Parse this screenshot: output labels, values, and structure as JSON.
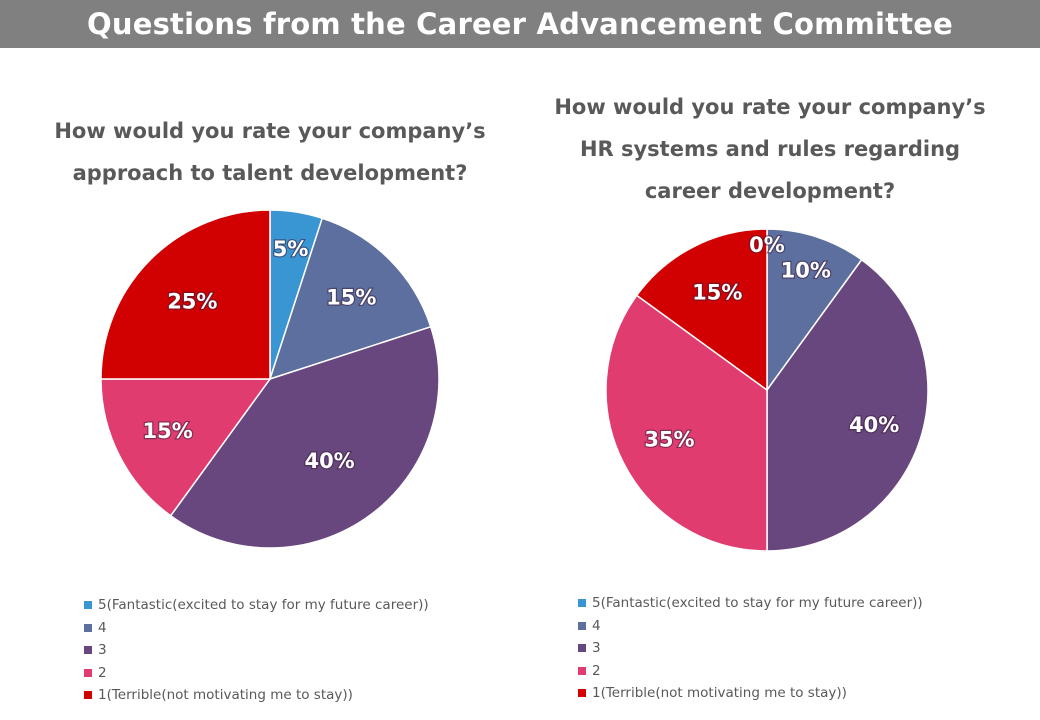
{
  "page_title": "Questions from the Career Advancement Committee",
  "colors": {
    "banner_bg": "#808080",
    "rating_5": "#3a96d2",
    "rating_4": "#5d6f9e",
    "rating_3": "#68467e",
    "rating_2": "#e03c70",
    "rating_1": "#d10001"
  },
  "chart_data": [
    {
      "type": "pie",
      "title_lines": [
        "How would you rate your company’s",
        "approach to talent development?"
      ],
      "categories": [
        "5(Fantastic(excited to stay for my future career))",
        "4",
        "3",
        "2",
        "1(Terrible(not motivating me to stay))"
      ],
      "values": [
        5,
        15,
        40,
        15,
        25
      ],
      "data_labels": [
        "5%",
        "15%",
        "40%",
        "15%",
        "25%"
      ],
      "legend_position": "bottom-left"
    },
    {
      "type": "pie",
      "title_lines": [
        "How would you rate your company’s",
        "HR systems and rules regarding",
        "career development?"
      ],
      "categories": [
        "5(Fantastic(excited to stay for my future career))",
        "4",
        "3",
        "2",
        "1(Terrible(not motivating me to stay))"
      ],
      "values": [
        0,
        10,
        40,
        35,
        15
      ],
      "data_labels": [
        "0%",
        "10%",
        "40%",
        "35%",
        "15%"
      ],
      "legend_position": "bottom-left"
    }
  ]
}
